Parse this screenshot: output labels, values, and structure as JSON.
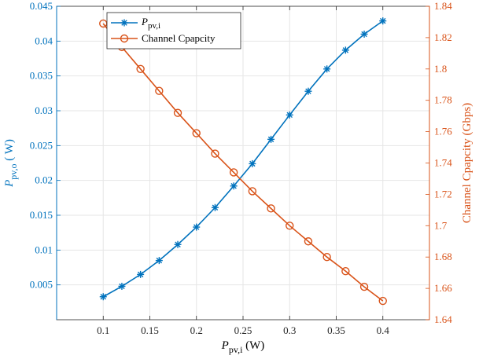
{
  "colors": {
    "left": "#0072BD",
    "right": "#D95319",
    "grid": "#e6e6e6",
    "axis": "#262626"
  },
  "chart_data": {
    "type": "line",
    "xlabel": {
      "main": "P",
      "sub": "pv,i",
      "unit": " (W)"
    },
    "ylabel_left": {
      "main": "P",
      "sub": "pv,o",
      "unit": " ( W)"
    },
    "ylabel_right": "Channel Cpapcity (Gbps)",
    "xlim": [
      0.05,
      0.45
    ],
    "ylim_left": [
      0,
      0.045
    ],
    "ylim_right": [
      1.64,
      1.84
    ],
    "xticks": [
      0.1,
      0.15,
      0.2,
      0.25,
      0.3,
      0.35,
      0.4
    ],
    "xtick_labels": [
      "0.1",
      "0.15",
      "0.2",
      "0.25",
      "0.3",
      "0.35",
      "0.4"
    ],
    "yticks_left": [
      0.005,
      0.01,
      0.015,
      0.02,
      0.025,
      0.03,
      0.035,
      0.04,
      0.045
    ],
    "ytick_labels_left": [
      "0.005",
      "0.01",
      "0.015",
      "0.02",
      "0.025",
      "0.03",
      "0.035",
      "0.04",
      "0.045"
    ],
    "yticks_right": [
      1.64,
      1.66,
      1.68,
      1.7,
      1.72,
      1.74,
      1.76,
      1.78,
      1.8,
      1.82,
      1.84
    ],
    "ytick_labels_right": [
      "1.64",
      "1.66",
      "1.68",
      "1.7",
      "1.72",
      "1.74",
      "1.76",
      "1.78",
      "1.8",
      "1.82",
      "1.84"
    ],
    "grid": true,
    "legend_position": "top-left",
    "x": [
      0.1,
      0.12,
      0.14,
      0.16,
      0.18,
      0.2,
      0.22,
      0.24,
      0.26,
      0.28,
      0.3,
      0.32,
      0.34,
      0.36,
      0.38,
      0.4
    ],
    "series": [
      {
        "name_main": "P",
        "name_sub": "pv,i",
        "axis": "left",
        "marker": "asterisk",
        "values": [
          0.0033,
          0.0048,
          0.0065,
          0.0085,
          0.0108,
          0.0133,
          0.0161,
          0.0192,
          0.0224,
          0.0259,
          0.0294,
          0.0328,
          0.036,
          0.0387,
          0.041,
          0.0429
        ]
      },
      {
        "name": "Channel Cpapcity",
        "axis": "right",
        "marker": "circle",
        "values": [
          1.829,
          1.814,
          1.8,
          1.786,
          1.772,
          1.759,
          1.746,
          1.734,
          1.722,
          1.711,
          1.7,
          1.69,
          1.68,
          1.671,
          1.661,
          1.652
        ]
      }
    ]
  }
}
